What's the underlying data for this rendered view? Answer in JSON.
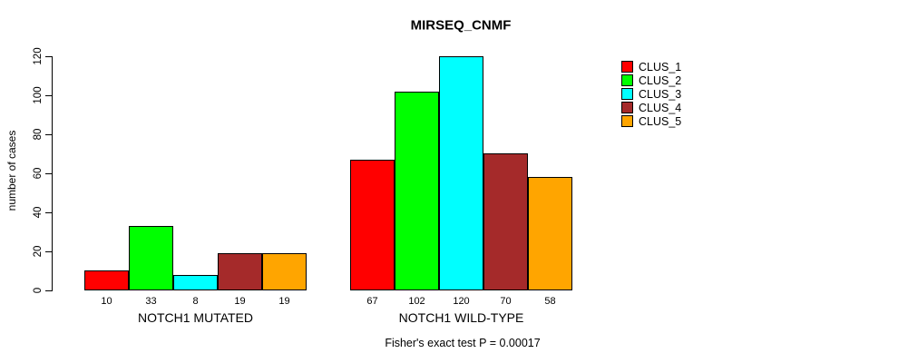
{
  "chart_data": {
    "type": "bar",
    "title": "MIRSEQ_CNMF",
    "ylabel": "number of cases",
    "xlabel": "",
    "ylim": [
      0,
      120
    ],
    "yticks": [
      0,
      20,
      40,
      60,
      80,
      100,
      120
    ],
    "grid": false,
    "legend_position": "right",
    "bar_value_labels_shown": true,
    "categories": [
      "NOTCH1 MUTATED",
      "NOTCH1 WILD-TYPE"
    ],
    "series": [
      {
        "name": "CLUS_1",
        "color": "#ff0000",
        "values": [
          10,
          67
        ]
      },
      {
        "name": "CLUS_2",
        "color": "#00ff00",
        "values": [
          33,
          102
        ]
      },
      {
        "name": "CLUS_3",
        "color": "#00ffff",
        "values": [
          8,
          120
        ]
      },
      {
        "name": "CLUS_4",
        "color": "#a52a2a",
        "values": [
          19,
          70
        ]
      },
      {
        "name": "CLUS_5",
        "color": "#ffa500",
        "values": [
          19,
          58
        ]
      }
    ],
    "footnote": "Fisher's exact test P = 0.00017"
  },
  "colors": {
    "background": "#ffffff",
    "axis": "#000000",
    "text": "#000000"
  }
}
